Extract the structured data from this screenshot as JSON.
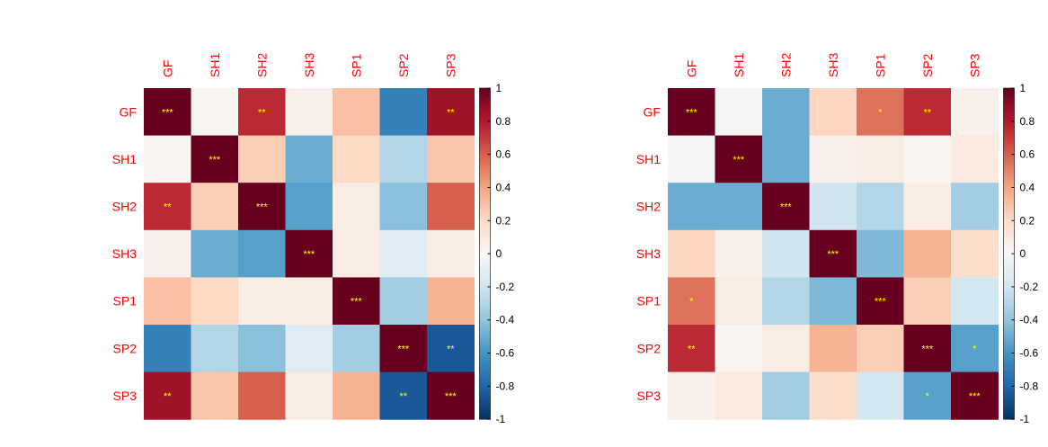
{
  "chart_data": [
    {
      "type": "heatmap",
      "title": "",
      "rows": [
        "GF",
        "SH1",
        "SH2",
        "SH3",
        "SP1",
        "SP2",
        "SP3"
      ],
      "columns": [
        "GF",
        "SH1",
        "SH2",
        "SH3",
        "SP1",
        "SP2",
        "SP3"
      ],
      "values": [
        [
          1.0,
          0.02,
          0.75,
          0.05,
          0.3,
          -0.68,
          0.85
        ],
        [
          0.02,
          1.0,
          0.25,
          -0.5,
          0.2,
          -0.3,
          0.28
        ],
        [
          0.75,
          0.25,
          1.0,
          -0.55,
          0.08,
          -0.42,
          0.6
        ],
        [
          0.05,
          -0.5,
          -0.55,
          1.0,
          0.08,
          -0.12,
          0.08
        ],
        [
          0.3,
          0.2,
          0.08,
          0.08,
          1.0,
          -0.35,
          0.35
        ],
        [
          -0.68,
          -0.3,
          -0.42,
          -0.12,
          -0.35,
          1.0,
          -0.85
        ],
        [
          0.85,
          0.28,
          0.6,
          0.08,
          0.35,
          -0.85,
          1.0
        ]
      ],
      "significance": [
        [
          "***",
          "",
          "**",
          "",
          "",
          "",
          "**"
        ],
        [
          "",
          "***",
          "",
          "",
          "",
          "",
          ""
        ],
        [
          "**",
          "",
          "***",
          "",
          "",
          "",
          ""
        ],
        [
          "",
          "",
          "",
          "***",
          "",
          "",
          ""
        ],
        [
          "",
          "",
          "",
          "",
          "***",
          "",
          ""
        ],
        [
          "",
          "",
          "",
          "",
          "",
          "***",
          "**"
        ],
        [
          "**",
          "",
          "",
          "",
          "",
          "**",
          "***"
        ]
      ],
      "color_scale": {
        "min": -1,
        "max": 1,
        "ticks": [
          "1",
          "0.8",
          "0.6",
          "0.4",
          "0.2",
          "0",
          "-0.2",
          "-0.4",
          "-0.6",
          "-0.8",
          "-1"
        ]
      }
    },
    {
      "type": "heatmap",
      "title": "",
      "rows": [
        "GF",
        "SH1",
        "SH2",
        "SH3",
        "SP1",
        "SP2",
        "SP3"
      ],
      "columns": [
        "GF",
        "SH1",
        "SH2",
        "SH3",
        "SP1",
        "SP2",
        "SP3"
      ],
      "values": [
        [
          1.0,
          -0.02,
          -0.5,
          0.22,
          0.55,
          0.75,
          0.05
        ],
        [
          -0.02,
          1.0,
          -0.5,
          0.05,
          0.08,
          0.02,
          0.1
        ],
        [
          -0.5,
          -0.5,
          1.0,
          -0.2,
          -0.3,
          0.08,
          -0.35
        ],
        [
          0.22,
          0.05,
          -0.2,
          1.0,
          -0.45,
          0.35,
          0.18
        ],
        [
          0.55,
          0.08,
          -0.3,
          -0.45,
          1.0,
          0.25,
          -0.18
        ],
        [
          0.75,
          0.02,
          0.08,
          0.35,
          0.25,
          1.0,
          -0.55
        ],
        [
          0.05,
          0.1,
          -0.35,
          0.18,
          -0.18,
          -0.55,
          1.0
        ]
      ],
      "significance": [
        [
          "***",
          "",
          "",
          "",
          "*",
          "**",
          ""
        ],
        [
          "",
          "***",
          "",
          "",
          "",
          "",
          ""
        ],
        [
          "",
          "",
          "***",
          "",
          "",
          "",
          ""
        ],
        [
          "",
          "",
          "",
          "***",
          "",
          "",
          ""
        ],
        [
          "*",
          "",
          "",
          "",
          "***",
          "",
          ""
        ],
        [
          "**",
          "",
          "",
          "",
          "",
          "***",
          "*"
        ],
        [
          "",
          "",
          "",
          "",
          "",
          "*",
          "***"
        ]
      ],
      "color_scale": {
        "min": -1,
        "max": 1,
        "ticks": [
          "1",
          "0.8",
          "0.6",
          "0.4",
          "0.2",
          "0",
          "-0.2",
          "-0.4",
          "-0.6",
          "-0.8",
          "-1"
        ]
      }
    }
  ],
  "colors": {
    "label": "#ff0000",
    "significance": "#ffff00",
    "scale": [
      "#053061",
      "#2166ac",
      "#4393c3",
      "#92c5de",
      "#d1e5f0",
      "#f7f7f7",
      "#fddbc7",
      "#f4a582",
      "#d6604d",
      "#b2182b",
      "#67001f"
    ]
  }
}
